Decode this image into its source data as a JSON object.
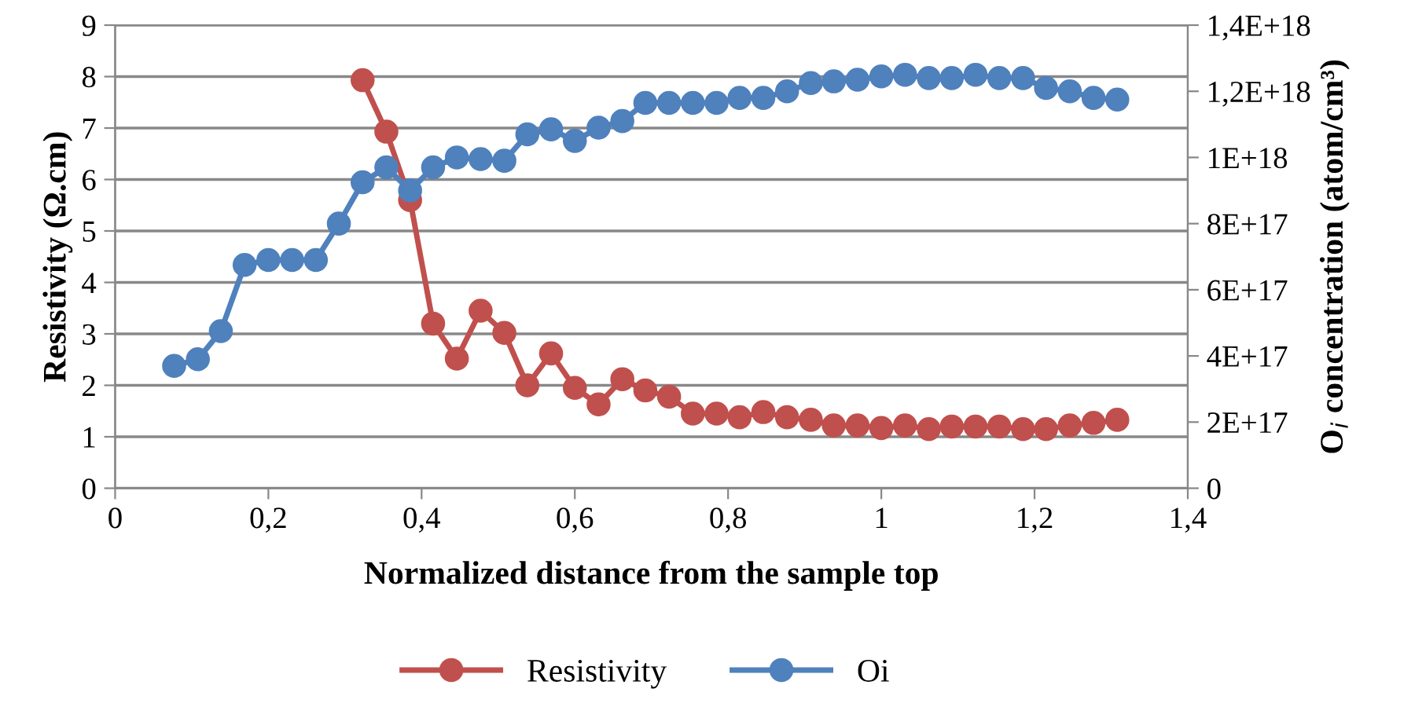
{
  "chart_data": {
    "type": "line",
    "xlabel": "Normalized distance from the sample top",
    "ylabel": "Resistivity (Ω.cm)",
    "y2label": "O$_{i}$ concentration (atom/cm³)",
    "xlim": [
      0,
      1.4
    ],
    "xticks": [
      0,
      {
        "value": 0.2,
        "label": "0,2"
      },
      {
        "value": 0.4,
        "label": "0,4"
      },
      {
        "value": 0.6,
        "label": "0,6"
      },
      {
        "value": 0.8,
        "label": "0,8"
      },
      1,
      {
        "value": 1.2,
        "label": "1,2"
      },
      {
        "value": 1.4,
        "label": "1,4"
      }
    ],
    "ylim": [
      0,
      9
    ],
    "yticks": [
      0,
      1,
      2,
      3,
      4,
      5,
      6,
      7,
      8,
      9
    ],
    "y2lim": [
      0,
      1.4e+18
    ],
    "y2ticks": [
      0,
      {
        "value": 2e+17,
        "label": "2E+17"
      },
      {
        "value": 4e+17,
        "label": "4E+17"
      },
      {
        "value": 6e+17,
        "label": "6E+17"
      },
      {
        "value": 8e+17,
        "label": "8E+17"
      },
      {
        "value": 1e+18,
        "label": "1E+18"
      },
      {
        "value": 1.2e+18,
        "label": "1,2E+18"
      },
      {
        "value": 1.4e+18,
        "label": "1,4E+18"
      }
    ],
    "grid": "y",
    "legend": "bottom",
    "marker": "circle",
    "line_style": "solid",
    "series": [
      {
        "name": "Resistivity",
        "color": "#c0504d",
        "x": [
          0.323,
          0.354,
          0.385,
          0.415,
          0.446,
          0.477,
          0.508,
          0.538,
          0.569,
          0.6,
          0.631,
          0.662,
          0.692,
          0.723,
          0.754,
          0.785,
          0.815,
          0.846,
          0.877,
          0.908,
          0.938,
          0.969,
          1.0,
          1.031,
          1.062,
          1.092,
          1.123,
          1.154,
          1.185,
          1.215,
          1.246,
          1.277,
          1.308
        ],
        "values": [
          7.93,
          6.93,
          5.6,
          3.2,
          2.52,
          3.45,
          3.02,
          2.0,
          2.62,
          1.95,
          1.63,
          2.12,
          1.9,
          1.78,
          1.45,
          1.45,
          1.38,
          1.48,
          1.38,
          1.33,
          1.22,
          1.22,
          1.17,
          1.22,
          1.15,
          1.2,
          1.2,
          1.2,
          1.15,
          1.15,
          1.22,
          1.27,
          1.33
        ]
      },
      {
        "name": "Oi",
        "color": "#4f81bd",
        "axis": "y2",
        "x": [
          0.077,
          0.108,
          0.138,
          0.169,
          0.2,
          0.231,
          0.262,
          0.292,
          0.323,
          0.354,
          0.385,
          0.415,
          0.446,
          0.477,
          0.508,
          0.538,
          0.569,
          0.6,
          0.631,
          0.662,
          0.692,
          0.723,
          0.754,
          0.785,
          0.815,
          0.846,
          0.877,
          0.908,
          0.938,
          0.969,
          1.0,
          1.031,
          1.062,
          1.092,
          1.123,
          1.154,
          1.185,
          1.215,
          1.246,
          1.277,
          1.308
        ],
        "values": [
          3.7e+17,
          3.9e+17,
          4.75e+17,
          6.75e+17,
          6.9e+17,
          6.9e+17,
          6.9e+17,
          8e+17,
          9.25e+17,
          9.7e+17,
          9e+17,
          9.7e+17,
          1e+18,
          9.95e+17,
          9.9e+17,
          1.07e+18,
          1.085e+18,
          1.05e+18,
          1.09e+18,
          1.11e+18,
          1.165e+18,
          1.165e+18,
          1.165e+18,
          1.165e+18,
          1.18e+18,
          1.18e+18,
          1.2e+18,
          1.225e+18,
          1.23e+18,
          1.235e+18,
          1.245e+18,
          1.25e+18,
          1.24e+18,
          1.24e+18,
          1.25e+18,
          1.24e+18,
          1.24e+18,
          1.21e+18,
          1.2e+18,
          1.18e+18,
          1.175e+18
        ]
      }
    ]
  }
}
